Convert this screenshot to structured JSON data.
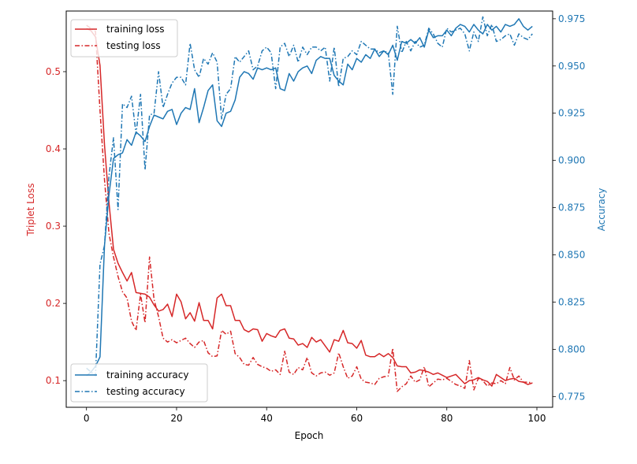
{
  "chart_data": {
    "type": "line",
    "xlabel": "Epoch",
    "ylabel_left": "Triplet Loss",
    "ylabel_right": "Accuracy",
    "xlim": [
      -4.5,
      103.5
    ],
    "ylim_left": [
      0.0655,
      0.5785
    ],
    "ylim_right": [
      0.7693,
      0.9791
    ],
    "x_ticks": [
      0,
      20,
      40,
      60,
      80,
      100
    ],
    "y_left_ticks": [
      0.1,
      0.2,
      0.3,
      0.4,
      0.5
    ],
    "y_right_ticks": [
      0.775,
      0.8,
      0.825,
      0.85,
      0.875,
      0.9,
      0.925,
      0.95,
      0.975
    ],
    "colors": {
      "loss": "#d62728",
      "accuracy": "#1f77b4"
    },
    "legend_loss": {
      "placement": "upper-left",
      "entries": [
        "training loss",
        "testing loss"
      ]
    },
    "legend_accuracy": {
      "placement": "lower-left",
      "entries": [
        "training accuracy",
        "testing accuracy"
      ]
    },
    "series": [
      {
        "name": "training loss",
        "axis": "left",
        "style": "solid",
        "values": [
          0.556,
          0.553,
          0.545,
          0.508,
          0.405,
          0.33,
          0.27,
          0.252,
          0.24,
          0.229,
          0.24,
          0.214,
          0.213,
          0.212,
          0.208,
          0.198,
          0.19,
          0.192,
          0.199,
          0.183,
          0.212,
          0.202,
          0.18,
          0.188,
          0.177,
          0.201,
          0.178,
          0.178,
          0.167,
          0.207,
          0.212,
          0.197,
          0.197,
          0.178,
          0.178,
          0.166,
          0.163,
          0.167,
          0.166,
          0.151,
          0.161,
          0.158,
          0.156,
          0.165,
          0.167,
          0.155,
          0.154,
          0.146,
          0.148,
          0.143,
          0.156,
          0.15,
          0.153,
          0.145,
          0.137,
          0.153,
          0.151,
          0.165,
          0.149,
          0.148,
          0.142,
          0.152,
          0.133,
          0.131,
          0.131,
          0.135,
          0.131,
          0.135,
          0.13,
          0.119,
          0.118,
          0.118,
          0.11,
          0.111,
          0.114,
          0.113,
          0.111,
          0.108,
          0.11,
          0.107,
          0.104,
          0.106,
          0.108,
          0.102,
          0.096,
          0.1,
          0.101,
          0.104,
          0.101,
          0.099,
          0.093,
          0.108,
          0.104,
          0.1,
          0.102,
          0.103,
          0.099,
          0.098,
          0.095,
          0.097
        ]
      },
      {
        "name": "testing loss",
        "axis": "left",
        "style": "dashdot",
        "values": [
          0.56,
          0.556,
          0.552,
          0.45,
          0.36,
          0.29,
          0.26,
          0.235,
          0.215,
          0.207,
          0.177,
          0.165,
          0.212,
          0.175,
          0.26,
          0.205,
          0.183,
          0.155,
          0.15,
          0.153,
          0.149,
          0.152,
          0.155,
          0.148,
          0.143,
          0.15,
          0.152,
          0.136,
          0.131,
          0.132,
          0.165,
          0.16,
          0.164,
          0.135,
          0.13,
          0.121,
          0.12,
          0.13,
          0.121,
          0.118,
          0.116,
          0.112,
          0.114,
          0.108,
          0.138,
          0.111,
          0.108,
          0.117,
          0.114,
          0.13,
          0.11,
          0.106,
          0.11,
          0.111,
          0.107,
          0.11,
          0.136,
          0.118,
          0.103,
          0.106,
          0.118,
          0.102,
          0.098,
          0.097,
          0.095,
          0.103,
          0.105,
          0.106,
          0.142,
          0.086,
          0.092,
          0.096,
          0.106,
          0.098,
          0.101,
          0.118,
          0.092,
          0.097,
          0.102,
          0.101,
          0.103,
          0.099,
          0.095,
          0.093,
          0.09,
          0.126,
          0.088,
          0.103,
          0.1,
          0.093,
          0.097,
          0.096,
          0.1,
          0.096,
          0.117,
          0.101,
          0.106,
          0.098,
          0.098,
          0.097
        ]
      },
      {
        "name": "training accuracy",
        "axis": "right",
        "style": "solid",
        "values": [
          0.786,
          0.788,
          0.791,
          0.796,
          0.855,
          0.882,
          0.901,
          0.903,
          0.904,
          0.911,
          0.908,
          0.915,
          0.913,
          0.91,
          0.918,
          0.924,
          0.923,
          0.922,
          0.926,
          0.927,
          0.919,
          0.925,
          0.928,
          0.927,
          0.938,
          0.92,
          0.928,
          0.937,
          0.94,
          0.921,
          0.918,
          0.925,
          0.926,
          0.932,
          0.944,
          0.947,
          0.946,
          0.943,
          0.949,
          0.948,
          0.949,
          0.948,
          0.949,
          0.938,
          0.937,
          0.946,
          0.942,
          0.947,
          0.949,
          0.95,
          0.946,
          0.953,
          0.955,
          0.954,
          0.954,
          0.945,
          0.942,
          0.94,
          0.951,
          0.948,
          0.954,
          0.952,
          0.956,
          0.954,
          0.959,
          0.955,
          0.958,
          0.956,
          0.961,
          0.953,
          0.963,
          0.962,
          0.964,
          0.962,
          0.965,
          0.96,
          0.969,
          0.965,
          0.966,
          0.966,
          0.969,
          0.966,
          0.97,
          0.972,
          0.971,
          0.968,
          0.972,
          0.969,
          0.967,
          0.972,
          0.969,
          0.971,
          0.968,
          0.972,
          0.971,
          0.972,
          0.975,
          0.971,
          0.969,
          0.971
        ]
      },
      {
        "name": "testing accuracy",
        "axis": "right",
        "style": "dashdot",
        "values": [
          0.79,
          0.788,
          0.786,
          0.845,
          0.855,
          0.892,
          0.912,
          0.874,
          0.93,
          0.928,
          0.934,
          0.914,
          0.935,
          0.895,
          0.924,
          0.925,
          0.947,
          0.928,
          0.935,
          0.941,
          0.944,
          0.944,
          0.94,
          0.962,
          0.948,
          0.944,
          0.954,
          0.951,
          0.957,
          0.952,
          0.922,
          0.935,
          0.938,
          0.955,
          0.952,
          0.955,
          0.958,
          0.948,
          0.95,
          0.958,
          0.96,
          0.957,
          0.938,
          0.96,
          0.962,
          0.955,
          0.961,
          0.952,
          0.96,
          0.956,
          0.96,
          0.96,
          0.958,
          0.96,
          0.942,
          0.96,
          0.939,
          0.954,
          0.955,
          0.958,
          0.956,
          0.963,
          0.961,
          0.959,
          0.959,
          0.957,
          0.958,
          0.957,
          0.935,
          0.971,
          0.957,
          0.963,
          0.958,
          0.963,
          0.96,
          0.961,
          0.97,
          0.967,
          0.962,
          0.96,
          0.97,
          0.968,
          0.969,
          0.97,
          0.967,
          0.958,
          0.968,
          0.963,
          0.976,
          0.966,
          0.972,
          0.963,
          0.964,
          0.966,
          0.967,
          0.961,
          0.967,
          0.965,
          0.964,
          0.967
        ]
      }
    ]
  }
}
